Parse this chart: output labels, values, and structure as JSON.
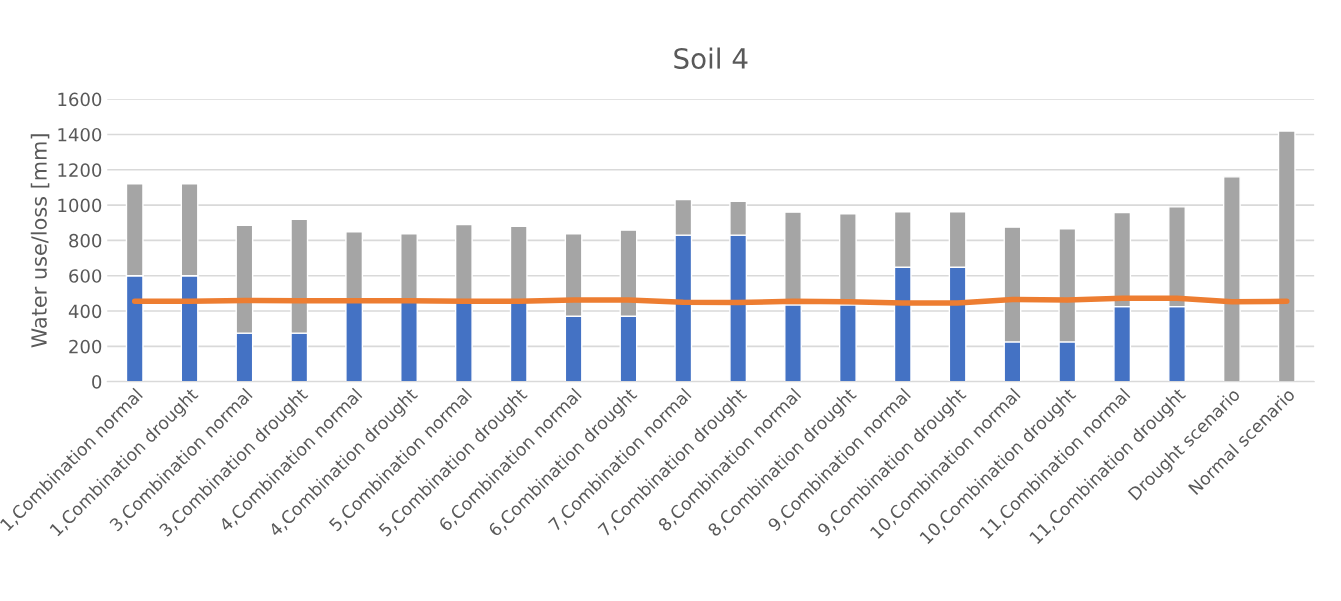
{
  "chart_data": {
    "type": "bar",
    "title": "Soil 4",
    "ylabel": "Water use/loss [mm]",
    "stacked": true,
    "categories": [
      "1,Combination normal",
      "1,Combination drought",
      "3,Combination normal",
      "3,Combination drought",
      "4,Combination normal",
      "4,Combination drought",
      "5,Combination normal",
      "5,Combination drought",
      "6,Combination normal",
      "6,Combination drought",
      "7,Combination normal",
      "7,Combination drought",
      "8,Combination normal",
      "8,Combination drought",
      "9,Combination normal",
      "9,Combination drought",
      "10,Combination normal",
      "10,Combination drought",
      "11,Combination normal",
      "11,Combination drought",
      "Drought scenario",
      "Normal scenario"
    ],
    "series": [
      {
        "color": "#4472c4",
        "values": [
          600,
          600,
          275,
          275,
          450,
          450,
          450,
          450,
          370,
          370,
          830,
          830,
          435,
          435,
          648,
          648,
          225,
          225,
          425,
          425,
          0,
          0
        ]
      },
      {
        "color": "#a5a5a5",
        "values": [
          520,
          520,
          610,
          645,
          398,
          388,
          440,
          430,
          468,
          488,
          202,
          192,
          525,
          515,
          314,
          314,
          650,
          640,
          533,
          565,
          1160,
          1420
        ]
      },
      {
        "type": "line",
        "color": "#ed7d31",
        "values": [
          455,
          455,
          460,
          458,
          458,
          458,
          455,
          455,
          462,
          462,
          450,
          448,
          455,
          452,
          445,
          445,
          465,
          462,
          472,
          472,
          452,
          455
        ]
      }
    ],
    "ylim": [
      0,
      1600
    ],
    "yticks": [
      0,
      200,
      400,
      600,
      800,
      1000,
      1200,
      1400,
      1600
    ],
    "grid": "y",
    "legend": false
  }
}
